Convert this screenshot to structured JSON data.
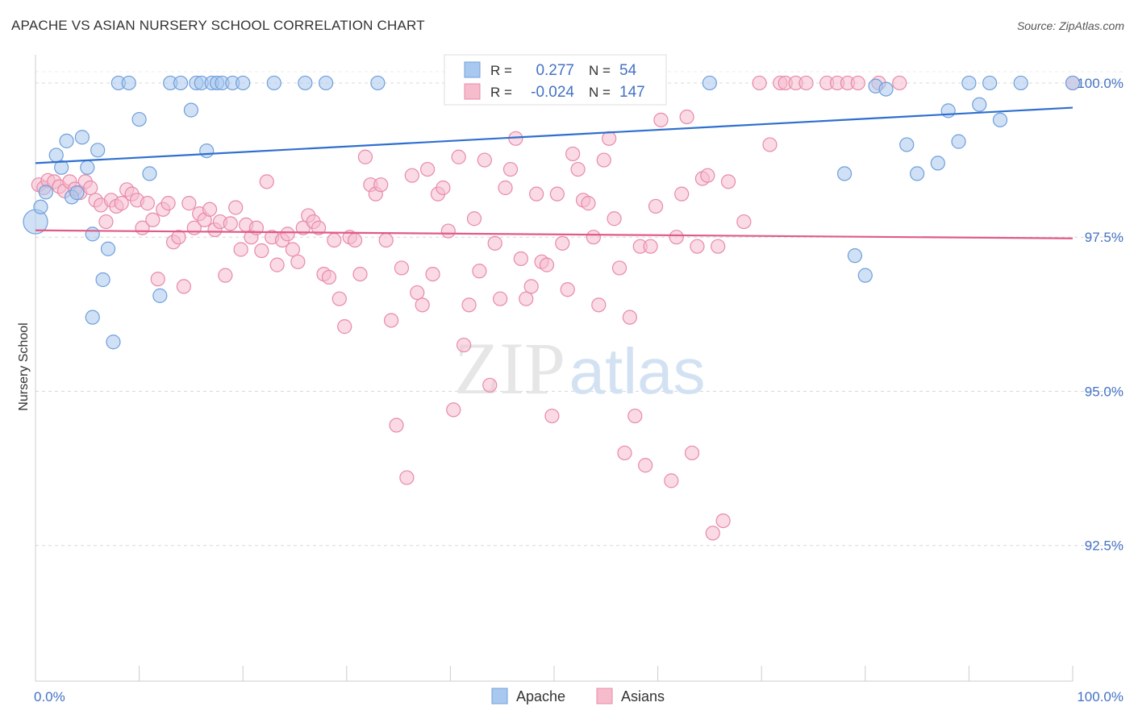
{
  "title": "APACHE VS ASIAN NURSERY SCHOOL CORRELATION CHART",
  "source": "Source: ZipAtlas.com",
  "watermark": {
    "zip": "ZIP",
    "atlas": "atlas"
  },
  "colors": {
    "apache_fill": "#a9c8ef",
    "apache_stroke": "#6f9fdb",
    "apache_line": "#2f6fcf",
    "asian_fill": "#f6bccd",
    "asian_stroke": "#e88aa8",
    "asian_line": "#e05a8a",
    "value_text": "#4472c4",
    "grid": "#d9d9d9"
  },
  "chart_data": {
    "type": "scatter",
    "title": "APACHE VS ASIAN NURSERY SCHOOL CORRELATION CHART",
    "xlabel": "",
    "ylabel": "Nursery School",
    "xlim": [
      0,
      100
    ],
    "ylim": [
      90.3,
      100.3
    ],
    "x_tick_labels": [
      {
        "value": 0,
        "label": "0.0%"
      },
      {
        "value": 100,
        "label": "100.0%"
      }
    ],
    "y_tick_labels": [
      {
        "value": 100.0,
        "label": "100.0%"
      },
      {
        "value": 97.5,
        "label": "97.5%"
      },
      {
        "value": 95.0,
        "label": "95.0%"
      },
      {
        "value": 92.5,
        "label": "92.5%"
      }
    ],
    "grid": true,
    "legend_position": "bottom-center",
    "stats": [
      {
        "series": "Apache",
        "r_label": "R =",
        "r": "0.277",
        "n_label": "N =",
        "n": "54"
      },
      {
        "series": "Asians",
        "r_label": "R =",
        "r": "-0.024",
        "n_label": "N =",
        "n": "147"
      }
    ],
    "series": [
      {
        "name": "Apache",
        "trend": {
          "x": [
            0,
            100
          ],
          "y": [
            98.7,
            99.6
          ]
        },
        "points": [
          [
            0,
            97.75
          ],
          [
            0.5,
            97.99
          ],
          [
            1,
            98.23
          ],
          [
            2,
            98.83
          ],
          [
            2.5,
            98.63
          ],
          [
            3,
            99.06
          ],
          [
            3.5,
            98.15
          ],
          [
            4,
            98.22
          ],
          [
            4.5,
            99.12
          ],
          [
            5,
            98.63
          ],
          [
            5.5,
            97.55
          ],
          [
            6,
            98.91
          ],
          [
            6.5,
            96.81
          ],
          [
            5.5,
            96.2
          ],
          [
            7,
            97.31
          ],
          [
            7.5,
            95.8
          ],
          [
            8,
            100
          ],
          [
            9,
            100
          ],
          [
            10,
            99.41
          ],
          [
            11,
            98.53
          ],
          [
            12,
            96.55
          ],
          [
            13,
            100
          ],
          [
            14,
            100
          ],
          [
            15,
            99.56
          ],
          [
            15.5,
            100
          ],
          [
            16,
            100
          ],
          [
            16.5,
            98.9
          ],
          [
            17,
            100
          ],
          [
            17.5,
            100
          ],
          [
            18,
            100
          ],
          [
            19,
            100
          ],
          [
            20,
            100
          ],
          [
            23,
            100
          ],
          [
            26,
            100
          ],
          [
            28,
            100
          ],
          [
            33,
            100
          ],
          [
            43,
            100
          ],
          [
            65,
            100
          ],
          [
            78,
            98.53
          ],
          [
            79,
            97.2
          ],
          [
            80,
            96.88
          ],
          [
            81,
            99.95
          ],
          [
            82,
            99.9
          ],
          [
            84,
            99.0
          ],
          [
            85,
            98.53
          ],
          [
            87,
            98.7
          ],
          [
            88,
            99.55
          ],
          [
            89,
            99.05
          ],
          [
            90,
            100
          ],
          [
            91,
            99.65
          ],
          [
            92,
            100
          ],
          [
            93,
            99.4
          ],
          [
            95,
            100
          ],
          [
            100,
            100
          ]
        ]
      },
      {
        "name": "Asians",
        "trend": {
          "x": [
            0,
            100
          ],
          "y": [
            97.61,
            97.48
          ]
        },
        "points": [
          [
            0.3,
            98.35
          ],
          [
            0.8,
            98.3
          ],
          [
            1.2,
            98.42
          ],
          [
            1.8,
            98.4
          ],
          [
            2.3,
            98.32
          ],
          [
            2.8,
            98.25
          ],
          [
            3.3,
            98.4
          ],
          [
            3.8,
            98.28
          ],
          [
            4.3,
            98.22
          ],
          [
            4.8,
            98.4
          ],
          [
            5.3,
            98.3
          ],
          [
            5.8,
            98.1
          ],
          [
            6.3,
            98.02
          ],
          [
            6.8,
            97.75
          ],
          [
            7.3,
            98.1
          ],
          [
            7.8,
            98.0
          ],
          [
            8.3,
            98.05
          ],
          [
            8.8,
            98.27
          ],
          [
            9.3,
            98.2
          ],
          [
            9.8,
            98.1
          ],
          [
            10.3,
            97.65
          ],
          [
            10.8,
            98.05
          ],
          [
            11.3,
            97.78
          ],
          [
            11.8,
            96.82
          ],
          [
            12.3,
            97.95
          ],
          [
            12.8,
            98.05
          ],
          [
            13.3,
            97.42
          ],
          [
            13.8,
            97.5
          ],
          [
            14.3,
            96.7
          ],
          [
            14.8,
            98.05
          ],
          [
            15.3,
            97.65
          ],
          [
            15.8,
            97.88
          ],
          [
            16.3,
            97.78
          ],
          [
            16.8,
            97.95
          ],
          [
            17.3,
            97.62
          ],
          [
            17.8,
            97.75
          ],
          [
            18.3,
            96.88
          ],
          [
            18.8,
            97.72
          ],
          [
            19.3,
            97.98
          ],
          [
            19.8,
            97.3
          ],
          [
            20.3,
            97.7
          ],
          [
            20.8,
            97.5
          ],
          [
            21.3,
            97.65
          ],
          [
            21.8,
            97.28
          ],
          [
            22.3,
            98.4
          ],
          [
            22.8,
            97.5
          ],
          [
            23.3,
            97.05
          ],
          [
            23.8,
            97.45
          ],
          [
            24.3,
            97.55
          ],
          [
            24.8,
            97.3
          ],
          [
            25.3,
            97.1
          ],
          [
            25.8,
            97.65
          ],
          [
            26.3,
            97.85
          ],
          [
            26.8,
            97.75
          ],
          [
            27.3,
            97.65
          ],
          [
            27.8,
            96.9
          ],
          [
            28.3,
            96.85
          ],
          [
            28.8,
            97.45
          ],
          [
            29.3,
            96.5
          ],
          [
            29.8,
            96.05
          ],
          [
            30.3,
            97.5
          ],
          [
            30.8,
            97.45
          ],
          [
            31.3,
            96.9
          ],
          [
            31.8,
            98.8
          ],
          [
            32.3,
            98.35
          ],
          [
            32.8,
            98.2
          ],
          [
            33.3,
            98.35
          ],
          [
            33.8,
            97.45
          ],
          [
            34.3,
            96.15
          ],
          [
            34.8,
            94.45
          ],
          [
            35.3,
            97.0
          ],
          [
            35.8,
            93.6
          ],
          [
            36.3,
            98.5
          ],
          [
            36.8,
            96.6
          ],
          [
            37.3,
            96.4
          ],
          [
            37.8,
            98.6
          ],
          [
            38.3,
            96.9
          ],
          [
            38.8,
            98.2
          ],
          [
            39.3,
            98.3
          ],
          [
            39.8,
            97.6
          ],
          [
            40.3,
            94.7
          ],
          [
            40.8,
            98.8
          ],
          [
            41.3,
            95.75
          ],
          [
            41.8,
            96.4
          ],
          [
            42.3,
            97.8
          ],
          [
            42.8,
            96.95
          ],
          [
            43.3,
            98.75
          ],
          [
            43.8,
            95.1
          ],
          [
            44.3,
            97.4
          ],
          [
            44.8,
            96.5
          ],
          [
            45.3,
            98.3
          ],
          [
            45.8,
            98.6
          ],
          [
            46.3,
            99.1
          ],
          [
            46.8,
            97.15
          ],
          [
            47.3,
            96.5
          ],
          [
            47.8,
            96.7
          ],
          [
            48.3,
            98.2
          ],
          [
            48.8,
            97.1
          ],
          [
            49.3,
            97.05
          ],
          [
            49.8,
            94.6
          ],
          [
            50.3,
            98.2
          ],
          [
            50.8,
            97.4
          ],
          [
            51.3,
            96.65
          ],
          [
            51.8,
            98.85
          ],
          [
            52.3,
            98.6
          ],
          [
            52.8,
            98.1
          ],
          [
            53.3,
            98.05
          ],
          [
            53.8,
            97.5
          ],
          [
            54.3,
            96.4
          ],
          [
            54.8,
            98.75
          ],
          [
            55.3,
            99.1
          ],
          [
            55.8,
            97.8
          ],
          [
            56.3,
            97.0
          ],
          [
            56.8,
            94.0
          ],
          [
            57.3,
            96.2
          ],
          [
            57.8,
            94.6
          ],
          [
            58.3,
            97.35
          ],
          [
            58.8,
            93.8
          ],
          [
            59.3,
            97.35
          ],
          [
            59.8,
            98.0
          ],
          [
            60.3,
            99.4
          ],
          [
            61.3,
            93.55
          ],
          [
            61.8,
            97.5
          ],
          [
            62.3,
            98.2
          ],
          [
            62.8,
            99.45
          ],
          [
            63.3,
            94.0
          ],
          [
            63.8,
            97.35
          ],
          [
            64.3,
            98.45
          ],
          [
            64.8,
            98.5
          ],
          [
            65.3,
            92.7
          ],
          [
            65.8,
            97.35
          ],
          [
            66.3,
            92.9
          ],
          [
            66.8,
            98.4
          ],
          [
            68.3,
            97.75
          ],
          [
            69.8,
            100
          ],
          [
            70.8,
            99.0
          ],
          [
            71.8,
            100
          ],
          [
            72.3,
            100
          ],
          [
            73.3,
            100
          ],
          [
            74.3,
            100
          ],
          [
            76.3,
            100
          ],
          [
            77.3,
            100
          ],
          [
            78.3,
            100
          ],
          [
            79.3,
            100
          ],
          [
            81.3,
            100
          ],
          [
            83.3,
            100
          ],
          [
            100,
            100
          ]
        ]
      }
    ]
  }
}
